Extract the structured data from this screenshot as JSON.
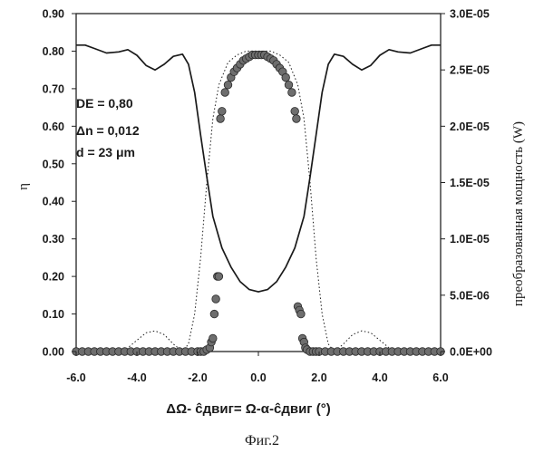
{
  "chart_data": {
    "type": "line",
    "xlabel": "ΔΩ- ĉдвиг= Ω-α-ĉдвиг (°)",
    "ylabel_left": "η",
    "ylabel_right": "преобразованная мощность (W)",
    "caption": "Фиг.2",
    "xlim": [
      -6.0,
      6.0
    ],
    "ylim_left": [
      0.0,
      0.9
    ],
    "ylim_right": [
      0.0,
      3e-05
    ],
    "x_tick_labels": [
      "-6.0",
      "-4.0",
      "-2.0",
      "0.0",
      "2.0",
      "4.0",
      "6.0"
    ],
    "y_left_tick_labels": [
      "0.00",
      "0.10",
      "0.20",
      "0.30",
      "0.40",
      "0.50",
      "0.60",
      "0.70",
      "0.80",
      "0.90"
    ],
    "y_right_tick_labels": [
      "0.0E+00",
      "5.0E-06",
      "1.0E-05",
      "1.5E-05",
      "2.0E-05",
      "2.5E-05",
      "3.0E-05"
    ],
    "annotations": [
      "DE = 0,80",
      "Δn = 0,012",
      "d = 23 μm"
    ],
    "series": [
      {
        "style": "solid-line",
        "axis": "right",
        "x": [
          -6.0,
          -5.7,
          -5.4,
          -5.0,
          -4.6,
          -4.3,
          -4.0,
          -3.7,
          -3.4,
          -3.1,
          -2.8,
          -2.5,
          -2.3,
          -2.1,
          -1.9,
          -1.7,
          -1.5,
          -1.2,
          -0.9,
          -0.6,
          -0.3,
          0.0,
          0.3,
          0.6,
          0.9,
          1.2,
          1.5,
          1.7,
          1.9,
          2.1,
          2.3,
          2.5,
          2.8,
          3.1,
          3.4,
          3.7,
          4.0,
          4.3,
          4.6,
          5.0,
          5.4,
          5.7,
          6.0
        ],
        "y": [
          2.72e-05,
          2.72e-05,
          2.69e-05,
          2.65e-05,
          2.66e-05,
          2.68e-05,
          2.63e-05,
          2.54e-05,
          2.5e-05,
          2.55e-05,
          2.62e-05,
          2.64e-05,
          2.55e-05,
          2.3e-05,
          1.92e-05,
          1.55e-05,
          1.2e-05,
          9.2e-06,
          7.5e-06,
          6.2e-06,
          5.5e-06,
          5.3e-06,
          5.5e-06,
          6.2e-06,
          7.5e-06,
          9.2e-06,
          1.2e-05,
          1.55e-05,
          1.92e-05,
          2.3e-05,
          2.55e-05,
          2.64e-05,
          2.62e-05,
          2.55e-05,
          2.5e-05,
          2.54e-05,
          2.63e-05,
          2.68e-05,
          2.66e-05,
          2.65e-05,
          2.69e-05,
          2.72e-05,
          2.72e-05
        ]
      },
      {
        "style": "dotted-line",
        "axis": "left",
        "x": [
          -6.0,
          -5.0,
          -4.5,
          -4.3,
          -4.0,
          -3.7,
          -3.4,
          -3.1,
          -2.8,
          -2.5,
          -2.3,
          -2.1,
          -1.9,
          -1.7,
          -1.5,
          -1.3,
          -1.0,
          -0.7,
          -0.4,
          0.0,
          0.4,
          0.7,
          1.0,
          1.3,
          1.5,
          1.7,
          1.9,
          2.1,
          2.3,
          2.5,
          2.8,
          3.1,
          3.4,
          3.7,
          4.0,
          4.3,
          4.5,
          5.0,
          6.0
        ],
        "y": [
          0.0,
          0.0,
          0.0,
          0.01,
          0.03,
          0.05,
          0.055,
          0.045,
          0.02,
          0.0,
          0.02,
          0.1,
          0.25,
          0.45,
          0.62,
          0.71,
          0.77,
          0.79,
          0.8,
          0.8,
          0.8,
          0.79,
          0.77,
          0.71,
          0.62,
          0.45,
          0.25,
          0.1,
          0.02,
          0.0,
          0.02,
          0.045,
          0.055,
          0.05,
          0.03,
          0.01,
          0.0,
          0.0,
          0.0
        ]
      },
      {
        "style": "markers",
        "axis": "left",
        "x": [
          -6.0,
          -5.8,
          -5.6,
          -5.4,
          -5.2,
          -5.0,
          -4.8,
          -4.6,
          -4.4,
          -4.2,
          -4.0,
          -3.8,
          -3.6,
          -3.4,
          -3.2,
          -3.0,
          -2.8,
          -2.6,
          -2.4,
          -2.2,
          -2.0,
          -1.9,
          -1.8,
          -1.7,
          -1.6,
          -1.55,
          -1.5,
          -1.45,
          -1.4,
          -1.35,
          -1.3,
          -1.25,
          -1.2,
          -1.1,
          -1.0,
          -0.9,
          -0.8,
          -0.7,
          -0.6,
          -0.5,
          -0.4,
          -0.3,
          -0.2,
          -0.1,
          0.0,
          0.1,
          0.2,
          0.3,
          0.4,
          0.5,
          0.6,
          0.7,
          0.8,
          0.9,
          1.0,
          1.1,
          1.2,
          1.25,
          1.3,
          1.35,
          1.4,
          1.45,
          1.5,
          1.55,
          1.6,
          1.7,
          1.8,
          1.9,
          2.0,
          2.2,
          2.4,
          2.6,
          2.8,
          3.0,
          3.2,
          3.4,
          3.6,
          3.8,
          4.0,
          4.2,
          4.4,
          4.6,
          4.8,
          5.0,
          5.2,
          5.4,
          5.6,
          5.8,
          6.0
        ],
        "y": [
          0.0,
          0.0,
          0.0,
          0.0,
          0.0,
          0.0,
          0.0,
          0.0,
          0.0,
          0.0,
          0.0,
          0.0,
          0.0,
          0.0,
          0.0,
          0.0,
          0.0,
          0.0,
          0.0,
          0.0,
          0.0,
          0.0,
          0.0,
          0.005,
          0.01,
          0.025,
          0.035,
          0.1,
          0.14,
          0.2,
          0.2,
          0.62,
          0.64,
          0.69,
          0.71,
          0.73,
          0.745,
          0.755,
          0.765,
          0.775,
          0.78,
          0.785,
          0.79,
          0.79,
          0.79,
          0.79,
          0.79,
          0.785,
          0.78,
          0.775,
          0.765,
          0.755,
          0.745,
          0.73,
          0.71,
          0.69,
          0.64,
          0.62,
          0.12,
          0.11,
          0.1,
          0.035,
          0.025,
          0.01,
          0.005,
          0.0,
          0.0,
          0.0,
          0.0,
          0.0,
          0.0,
          0.0,
          0.0,
          0.0,
          0.0,
          0.0,
          0.0,
          0.0,
          0.0,
          0.0,
          0.0,
          0.0,
          0.0,
          0.0,
          0.0,
          0.0,
          0.0,
          0.0,
          0.0
        ]
      }
    ],
    "grid": false,
    "colors": {
      "line": "#1a1a1a",
      "marker_fill": "#6e6e6e",
      "marker_stroke": "#2a2a2a",
      "box": "#222222"
    }
  }
}
